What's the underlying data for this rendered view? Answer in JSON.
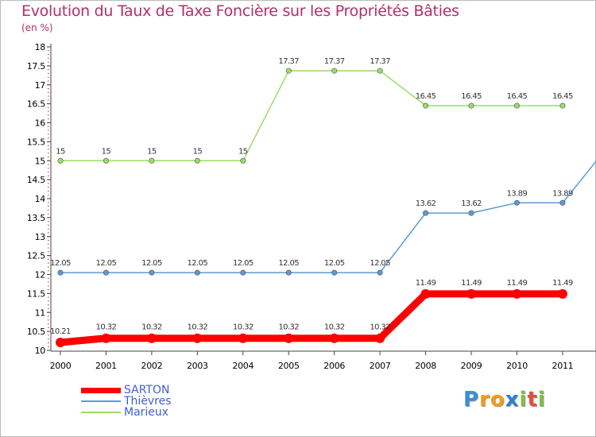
{
  "chart_data": {
    "type": "line",
    "title": "Evolution du Taux de Taxe Foncière sur les Propriétés Bâties",
    "ylabel": "(en %)",
    "x": [
      "2000",
      "2001",
      "2002",
      "2003",
      "2004",
      "2005",
      "2006",
      "2007",
      "2008",
      "2009",
      "2010",
      "2011"
    ],
    "ylim": [
      10,
      18
    ],
    "yticks": [
      "10",
      "10.5",
      "11",
      "11.5",
      "12",
      "12.5",
      "13",
      "13.5",
      "14",
      "14.5",
      "15",
      "15.5",
      "16",
      "16.5",
      "17",
      "17.5",
      "18"
    ],
    "series": [
      {
        "name": "SARTON",
        "color": "#ff0000",
        "values": [
          10.21,
          10.32,
          10.32,
          10.32,
          10.32,
          10.32,
          10.32,
          10.32,
          11.49,
          11.49,
          11.49,
          11.49
        ],
        "labels": [
          "10.21",
          "10.32",
          "10.32",
          "10.32",
          "10.32",
          "10.32",
          "10.32",
          "10.32",
          "11.49",
          "11.49",
          "11.49",
          "11.49"
        ]
      },
      {
        "name": "Thièvres",
        "color": "#5a9bd5",
        "values": [
          12.05,
          12.05,
          12.05,
          12.05,
          12.05,
          12.05,
          12.05,
          12.05,
          13.62,
          13.62,
          13.89,
          13.89
        ],
        "labels": [
          "12.05",
          "12.05",
          "12.05",
          "12.05",
          "12.05",
          "12.05",
          "12.05",
          "12.05",
          "13.62",
          "13.62",
          "13.89",
          "13.89"
        ]
      },
      {
        "name": "Marieux",
        "color": "#99dd66",
        "values": [
          15,
          15,
          15,
          15,
          15,
          17.37,
          17.37,
          17.37,
          16.45,
          16.45,
          16.45,
          16.45
        ],
        "labels": [
          "15",
          "15",
          "15",
          "15",
          "15",
          "17.37",
          "17.37",
          "17.37",
          "16.45",
          "16.45",
          "16.45",
          "16.45"
        ]
      }
    ],
    "grid": false,
    "legend": "bottom-left"
  },
  "brand": {
    "name": "Proxiti",
    "letters": [
      "P",
      "r",
      "o",
      "x",
      "i",
      "t",
      "i"
    ]
  }
}
